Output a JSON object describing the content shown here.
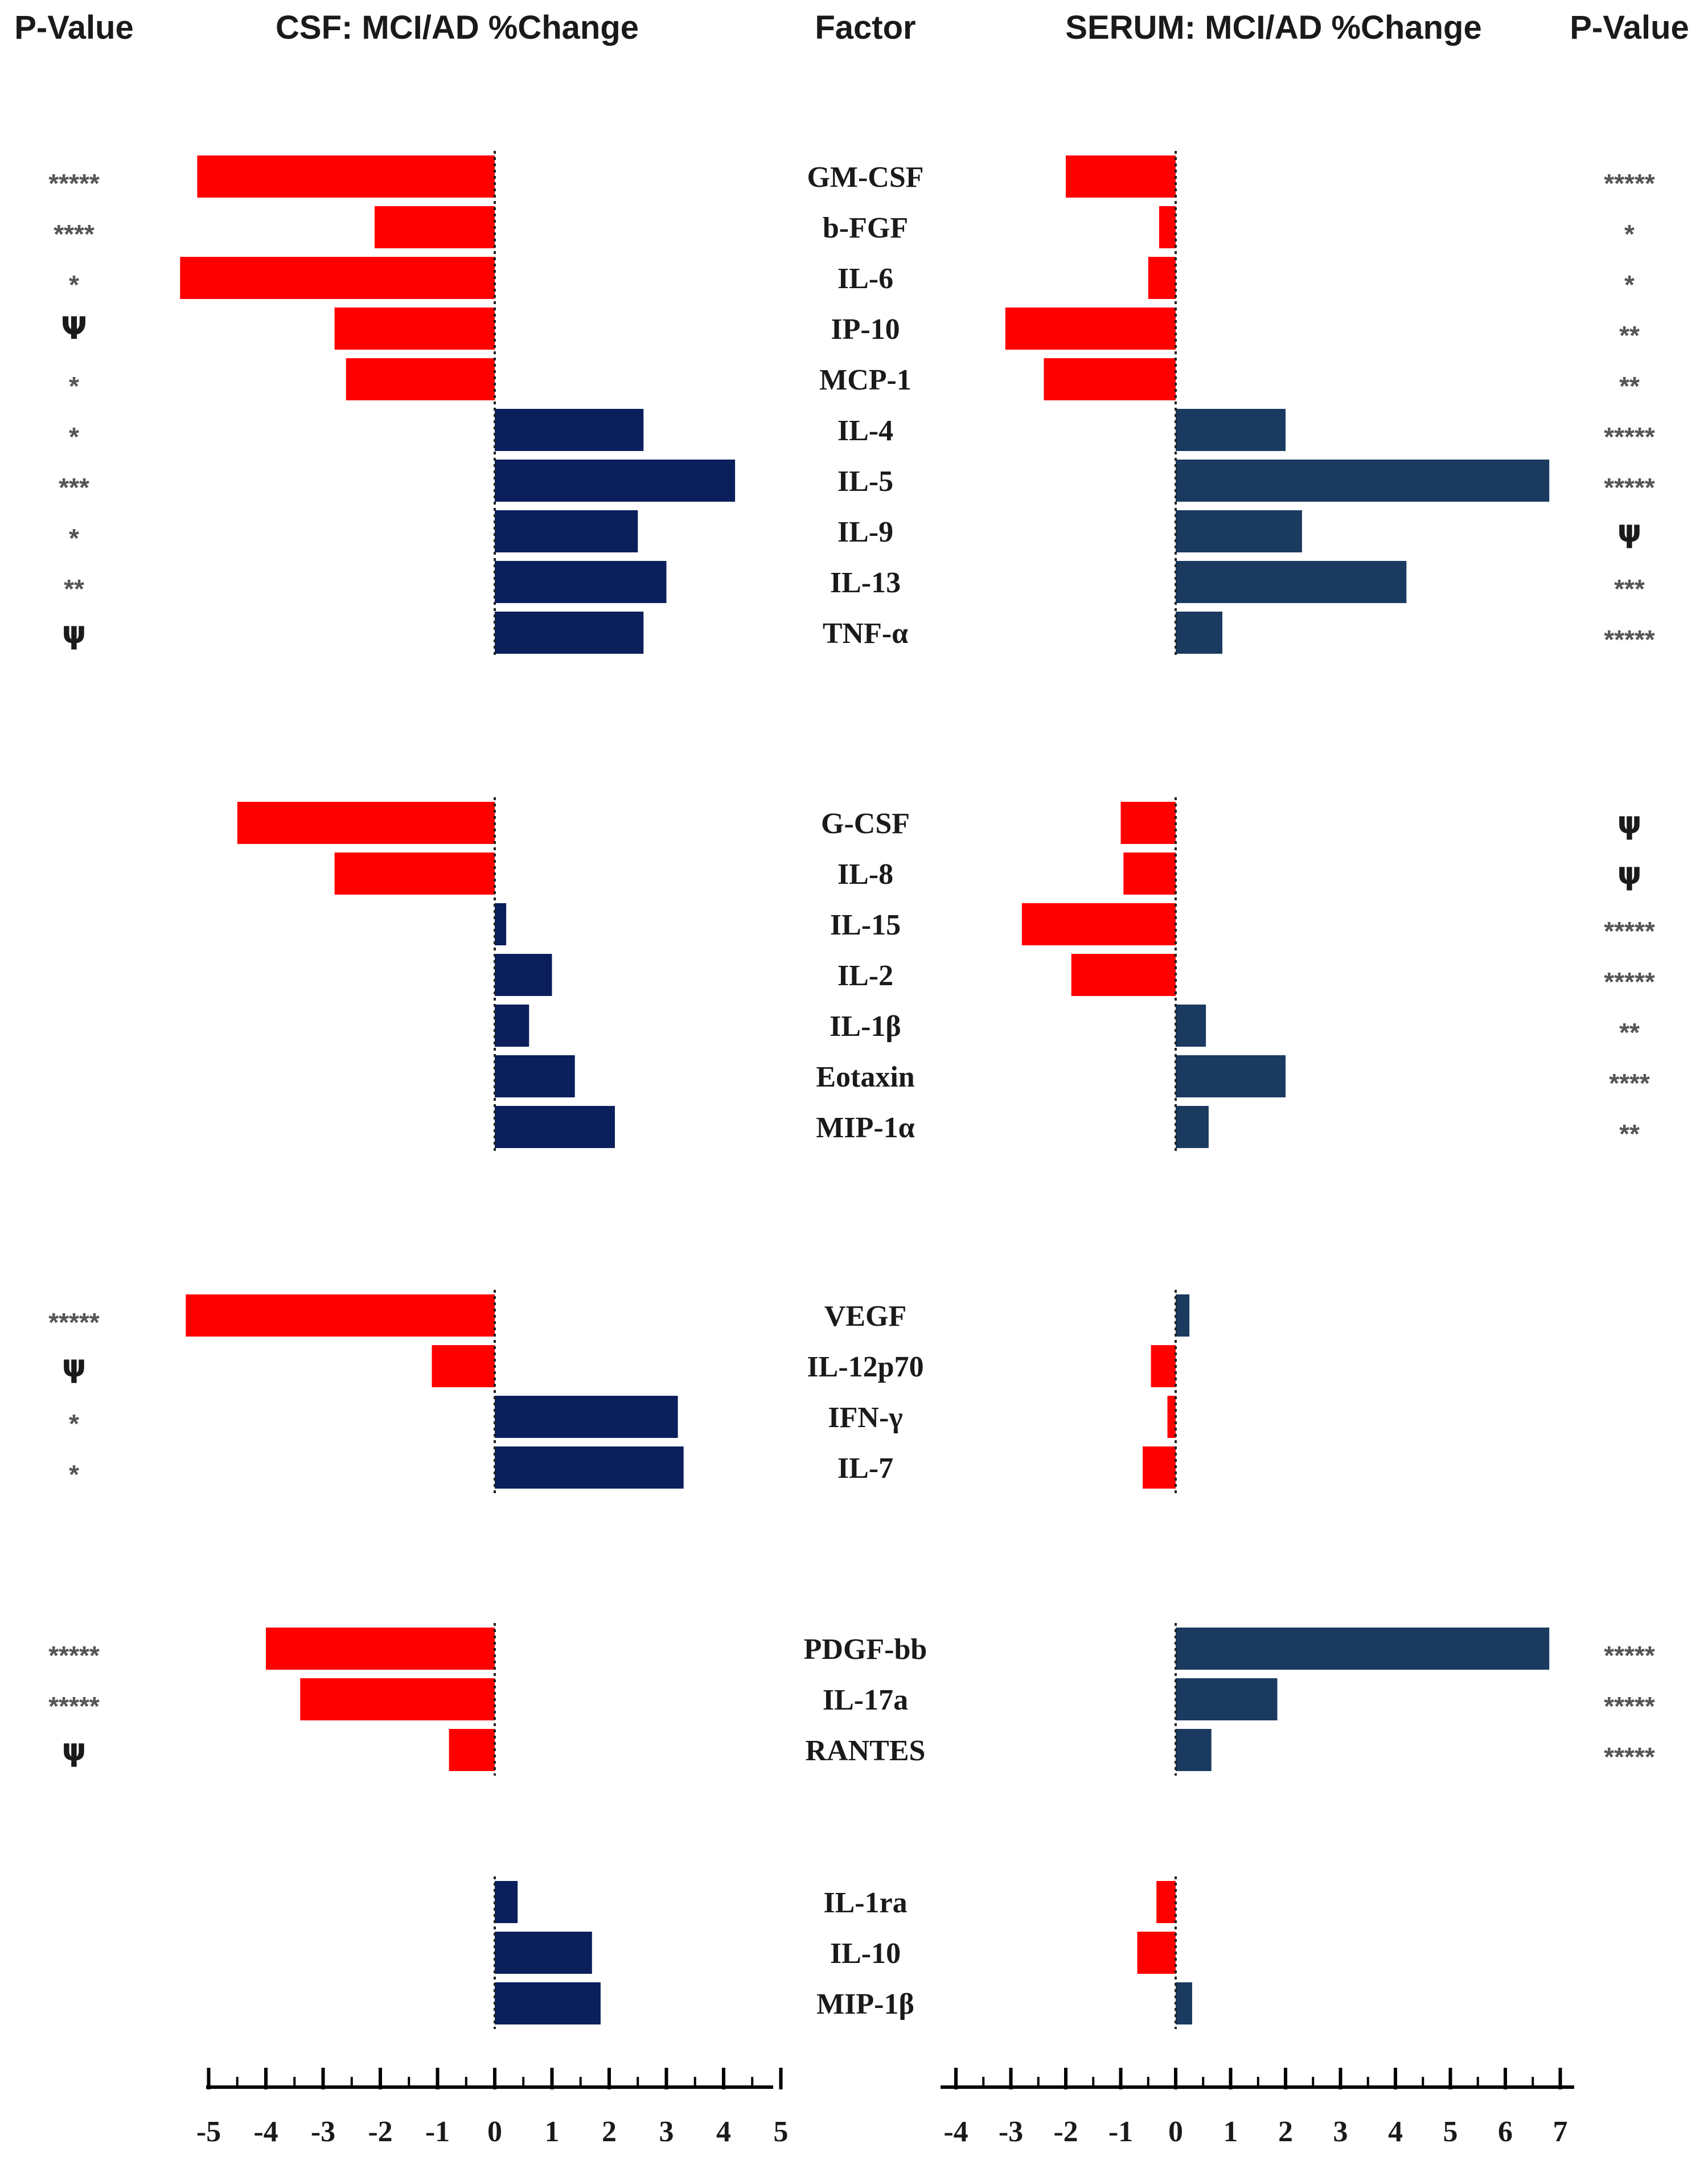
{
  "headers": {
    "pvalue_left": "P-Value",
    "csf": "CSF: MCI/AD %Change",
    "factor": "Factor",
    "serum": "SERUM: MCI/AD %Change",
    "pvalue_right": "P-Value"
  },
  "colors": {
    "negative": "#ff0000",
    "csf_positive": "#0a1f5c",
    "serum_positive": "#1a3a60"
  },
  "chart_data": {
    "type": "bar",
    "orientation": "horizontal",
    "groups": [
      [
        "GM-CSF",
        "b-FGF",
        "IL-6",
        "IP-10",
        "MCP-1",
        "IL-4",
        "IL-5",
        "IL-9",
        "IL-13",
        "TNF-α"
      ],
      [
        "G-CSF",
        "IL-8",
        "IL-15",
        "IL-2",
        "IL-1β",
        "Eotaxin",
        "MIP-1α"
      ],
      [
        "VEGF",
        "IL-12p70",
        "IFN-γ",
        "IL-7"
      ],
      [
        "PDGF-bb",
        "IL-17a",
        "RANTES"
      ],
      [
        "IL-1ra",
        "IL-10",
        "MIP-1β"
      ]
    ],
    "categories": [
      "GM-CSF",
      "b-FGF",
      "IL-6",
      "IP-10",
      "MCP-1",
      "IL-4",
      "IL-5",
      "IL-9",
      "IL-13",
      "TNF-α",
      "G-CSF",
      "IL-8",
      "IL-15",
      "IL-2",
      "IL-1β",
      "Eotaxin",
      "MIP-1α",
      "VEGF",
      "IL-12p70",
      "IFN-γ",
      "IL-7",
      "PDGF-bb",
      "IL-17a",
      "RANTES",
      "IL-1ra",
      "IL-10",
      "MIP-1β"
    ],
    "series": [
      {
        "name": "CSF: MCI/AD %Change",
        "values": [
          -5.2,
          -2.1,
          -5.5,
          -2.8,
          -2.6,
          2.6,
          4.2,
          2.5,
          3.0,
          2.6,
          -4.5,
          -2.8,
          0.2,
          1.0,
          0.6,
          1.4,
          2.1,
          -5.4,
          -1.1,
          3.2,
          3.3,
          -4.0,
          -3.4,
          -0.8,
          0.4,
          1.7,
          1.85
        ],
        "xlim": [
          -5,
          5
        ],
        "ticks": [
          "-5",
          "-4",
          "-3",
          "-2",
          "-1",
          "0",
          "1",
          "2",
          "3",
          "4",
          "5"
        ]
      },
      {
        "name": "SERUM: MCI/AD %Change",
        "values": [
          -2.0,
          -0.3,
          -0.5,
          -3.1,
          -2.4,
          2.0,
          6.8,
          2.3,
          4.2,
          0.85,
          -1.0,
          -0.95,
          -2.8,
          -1.9,
          0.55,
          2.0,
          0.6,
          0.25,
          -0.45,
          -0.15,
          -0.6,
          6.8,
          1.85,
          0.65,
          -0.35,
          -0.7,
          0.3
        ],
        "xlim": [
          -4,
          7
        ],
        "ticks": [
          "-4",
          "-3",
          "-2",
          "-1",
          "0",
          "1",
          "2",
          "3",
          "4",
          "5",
          "6",
          "7"
        ]
      }
    ],
    "pvalues_csf": [
      "*****",
      "****",
      "*",
      "Ψ",
      "*",
      "*",
      "***",
      "*",
      "**",
      "ψ",
      "",
      "",
      "",
      "",
      "",
      "",
      "",
      "*****",
      "ψ",
      "*",
      "*",
      "*****",
      "*****",
      "ψ",
      "",
      "",
      ""
    ],
    "pvalues_serum": [
      "*****",
      "*",
      "*",
      "**",
      "**",
      "*****",
      "*****",
      "ψ",
      "***",
      "*****",
      "ψ",
      "ψ",
      "*****",
      "*****",
      "**",
      "****",
      "**",
      "",
      "",
      "",
      "",
      "*****",
      "*****",
      "*****",
      "",
      "",
      ""
    ]
  }
}
